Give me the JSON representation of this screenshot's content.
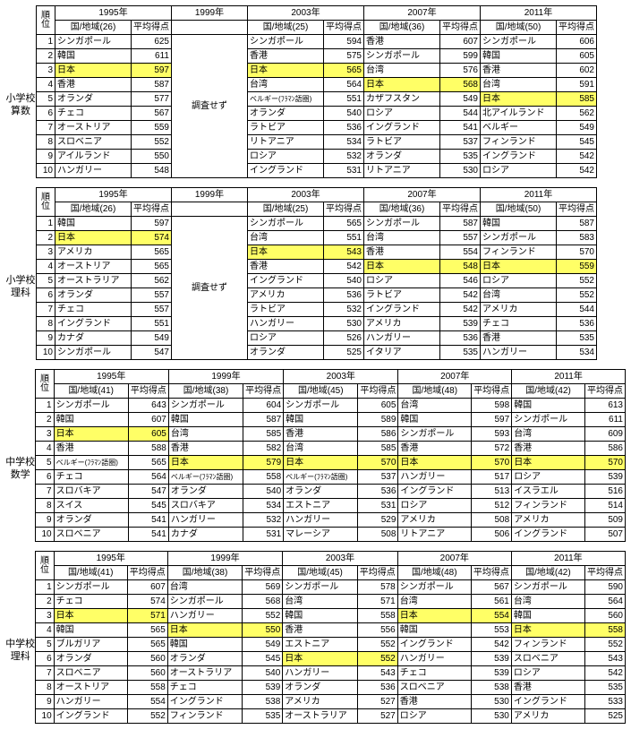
{
  "labels": {
    "rank": "順\n位",
    "year_suffix": "年",
    "avg": "平均得点",
    "noinvestigate": "調査せず"
  },
  "sections": [
    {
      "title": [
        "小学校",
        "算数"
      ],
      "years": [
        {
          "year": "1995",
          "rc": "国/地域(26)",
          "rows": [
            [
              "シンガポール",
              "625",
              0
            ],
            [
              "韓国",
              "611",
              0
            ],
            [
              "日本",
              "597",
              1
            ],
            [
              "香港",
              "587",
              0
            ],
            [
              "オランダ",
              "577",
              0
            ],
            [
              "チェコ",
              "567",
              0
            ],
            [
              "オーストリア",
              "559",
              0
            ],
            [
              "スロベニア",
              "552",
              0
            ],
            [
              "アイルランド",
              "550",
              0
            ],
            [
              "ハンガリー",
              "548",
              0
            ]
          ]
        },
        {
          "year": "1999",
          "rc": "",
          "noinvest": true
        },
        {
          "year": "2003",
          "rc": "国/地域(25)",
          "rows": [
            [
              "シンガポール",
              "594",
              0
            ],
            [
              "香港",
              "575",
              0
            ],
            [
              "日本",
              "565",
              1
            ],
            [
              "台湾",
              "564",
              0
            ],
            [
              "ベルギー(ﾌﾗﾏﾝ語圏)",
              "551",
              0
            ],
            [
              "オランダ",
              "540",
              0
            ],
            [
              "ラトビア",
              "536",
              0
            ],
            [
              "リトアニア",
              "534",
              0
            ],
            [
              "ロシア",
              "532",
              0
            ],
            [
              "イングランド",
              "531",
              0
            ]
          ]
        },
        {
          "year": "2007",
          "rc": "国/地域(36)",
          "rows": [
            [
              "香港",
              "607",
              0
            ],
            [
              "シンガポール",
              "599",
              0
            ],
            [
              "台湾",
              "576",
              0
            ],
            [
              "日本",
              "568",
              1
            ],
            [
              "カザフスタン",
              "549",
              0
            ],
            [
              "ロシア",
              "544",
              0
            ],
            [
              "イングランド",
              "541",
              0
            ],
            [
              "ラトビア",
              "537",
              0
            ],
            [
              "オランダ",
              "535",
              0
            ],
            [
              "リトアニア",
              "530",
              0
            ]
          ]
        },
        {
          "year": "2011",
          "rc": "国/地域(50)",
          "rows": [
            [
              "シンガポール",
              "606",
              0
            ],
            [
              "韓国",
              "605",
              0
            ],
            [
              "香港",
              "602",
              0
            ],
            [
              "台湾",
              "591",
              0
            ],
            [
              "日本",
              "585",
              1
            ],
            [
              "北アイルランド",
              "562",
              0
            ],
            [
              "ベルギー",
              "549",
              0
            ],
            [
              "フィンランド",
              "545",
              0
            ],
            [
              "イングランド",
              "542",
              0
            ],
            [
              "ロシア",
              "542",
              0
            ]
          ]
        }
      ]
    },
    {
      "title": [
        "小学校",
        "理科"
      ],
      "years": [
        {
          "year": "1995",
          "rc": "国/地域(26)",
          "rows": [
            [
              "韓国",
              "597",
              0
            ],
            [
              "日本",
              "574",
              1
            ],
            [
              "アメリカ",
              "565",
              0
            ],
            [
              "オーストリア",
              "565",
              0
            ],
            [
              "オーストラリア",
              "562",
              0
            ],
            [
              "オランダ",
              "557",
              0
            ],
            [
              "チェコ",
              "557",
              0
            ],
            [
              "イングランド",
              "551",
              0
            ],
            [
              "カナダ",
              "549",
              0
            ],
            [
              "シンガポール",
              "547",
              0
            ]
          ]
        },
        {
          "year": "1999",
          "rc": "",
          "noinvest": true
        },
        {
          "year": "2003",
          "rc": "国/地域(25)",
          "rows": [
            [
              "シンガポール",
              "565",
              0
            ],
            [
              "台湾",
              "551",
              0
            ],
            [
              "日本",
              "543",
              1
            ],
            [
              "香港",
              "542",
              0
            ],
            [
              "イングランド",
              "540",
              0
            ],
            [
              "アメリカ",
              "536",
              0
            ],
            [
              "ラトビア",
              "532",
              0
            ],
            [
              "ハンガリー",
              "530",
              0
            ],
            [
              "ロシア",
              "526",
              0
            ],
            [
              "オランダ",
              "525",
              0
            ]
          ]
        },
        {
          "year": "2007",
          "rc": "国/地域(36)",
          "rows": [
            [
              "シンガポール",
              "587",
              0
            ],
            [
              "台湾",
              "557",
              0
            ],
            [
              "香港",
              "554",
              0
            ],
            [
              "日本",
              "548",
              1
            ],
            [
              "ロシア",
              "546",
              0
            ],
            [
              "ラトビア",
              "542",
              0
            ],
            [
              "イングランド",
              "542",
              0
            ],
            [
              "アメリカ",
              "539",
              0
            ],
            [
              "ハンガリー",
              "536",
              0
            ],
            [
              "イタリア",
              "535",
              0
            ]
          ]
        },
        {
          "year": "2011",
          "rc": "国/地域(50)",
          "rows": [
            [
              "韓国",
              "587",
              0
            ],
            [
              "シンガポール",
              "583",
              0
            ],
            [
              "フィンランド",
              "570",
              0
            ],
            [
              "日本",
              "559",
              1
            ],
            [
              "ロシア",
              "552",
              0
            ],
            [
              "台湾",
              "552",
              0
            ],
            [
              "アメリカ",
              "544",
              0
            ],
            [
              "チェコ",
              "536",
              0
            ],
            [
              "香港",
              "535",
              0
            ],
            [
              "ハンガリー",
              "534",
              0
            ]
          ]
        }
      ]
    },
    {
      "title": [
        "中学校",
        "数学"
      ],
      "years": [
        {
          "year": "1995",
          "rc": "国/地域(41)",
          "rows": [
            [
              "シンガポール",
              "643",
              0
            ],
            [
              "韓国",
              "607",
              0
            ],
            [
              "日本",
              "605",
              1
            ],
            [
              "香港",
              "588",
              0
            ],
            [
              "ベルギー(ﾌﾗﾏﾝ語圏)",
              "565",
              0
            ],
            [
              "チェコ",
              "564",
              0
            ],
            [
              "スロバキア",
              "547",
              0
            ],
            [
              "スイス",
              "545",
              0
            ],
            [
              "オランダ",
              "541",
              0
            ],
            [
              "スロベニア",
              "541",
              0
            ]
          ]
        },
        {
          "year": "1999",
          "rc": "国/地域(38)",
          "rows": [
            [
              "シンガポール",
              "604",
              0
            ],
            [
              "韓国",
              "587",
              0
            ],
            [
              "台湾",
              "585",
              0
            ],
            [
              "香港",
              "582",
              0
            ],
            [
              "日本",
              "579",
              1
            ],
            [
              "ベルギー(ﾌﾗﾏﾝ語圏)",
              "558",
              0
            ],
            [
              "オランダ",
              "540",
              0
            ],
            [
              "スロバキア",
              "534",
              0
            ],
            [
              "ハンガリー",
              "532",
              0
            ],
            [
              "カナダ",
              "531",
              0
            ]
          ]
        },
        {
          "year": "2003",
          "rc": "国/地域(45)",
          "rows": [
            [
              "シンガポール",
              "605",
              0
            ],
            [
              "韓国",
              "589",
              0
            ],
            [
              "香港",
              "586",
              0
            ],
            [
              "台湾",
              "585",
              0
            ],
            [
              "日本",
              "570",
              1
            ],
            [
              "ベルギー(ﾌﾗﾏﾝ語圏)",
              "537",
              0
            ],
            [
              "オランダ",
              "536",
              0
            ],
            [
              "エストニア",
              "531",
              0
            ],
            [
              "ハンガリー",
              "529",
              0
            ],
            [
              "マレーシア",
              "508",
              0
            ]
          ]
        },
        {
          "year": "2007",
          "rc": "国/地域(48)",
          "rows": [
            [
              "台湾",
              "598",
              0
            ],
            [
              "韓国",
              "597",
              0
            ],
            [
              "シンガポール",
              "593",
              0
            ],
            [
              "香港",
              "572",
              0
            ],
            [
              "日本",
              "570",
              1
            ],
            [
              "ハンガリー",
              "517",
              0
            ],
            [
              "イングランド",
              "513",
              0
            ],
            [
              "ロシア",
              "512",
              0
            ],
            [
              "アメリカ",
              "508",
              0
            ],
            [
              "リトアニア",
              "506",
              0
            ]
          ]
        },
        {
          "year": "2011",
          "rc": "国/地域(42)",
          "rows": [
            [
              "韓国",
              "613",
              0
            ],
            [
              "シンガポール",
              "611",
              0
            ],
            [
              "台湾",
              "609",
              0
            ],
            [
              "香港",
              "586",
              0
            ],
            [
              "日本",
              "570",
              1
            ],
            [
              "ロシア",
              "539",
              0
            ],
            [
              "イスラエル",
              "516",
              0
            ],
            [
              "フィンランド",
              "514",
              0
            ],
            [
              "アメリカ",
              "509",
              0
            ],
            [
              "イングランド",
              "507",
              0
            ]
          ]
        }
      ]
    },
    {
      "title": [
        "中学校",
        "理科"
      ],
      "years": [
        {
          "year": "1995",
          "rc": "国/地域(41)",
          "rows": [
            [
              "シンガポール",
              "607",
              0
            ],
            [
              "チェコ",
              "574",
              0
            ],
            [
              "日本",
              "571",
              1
            ],
            [
              "韓国",
              "565",
              0
            ],
            [
              "ブルガリア",
              "565",
              0
            ],
            [
              "オランダ",
              "560",
              0
            ],
            [
              "スロベニア",
              "560",
              0
            ],
            [
              "オーストリア",
              "558",
              0
            ],
            [
              "ハンガリー",
              "554",
              0
            ],
            [
              "イングランド",
              "552",
              0
            ]
          ]
        },
        {
          "year": "1999",
          "rc": "国/地域(38)",
          "rows": [
            [
              "台湾",
              "569",
              0
            ],
            [
              "シンガポール",
              "568",
              0
            ],
            [
              "ハンガリー",
              "552",
              0
            ],
            [
              "日本",
              "550",
              1
            ],
            [
              "韓国",
              "549",
              0
            ],
            [
              "オランダ",
              "545",
              0
            ],
            [
              "オーストラリア",
              "540",
              0
            ],
            [
              "チェコ",
              "539",
              0
            ],
            [
              "イングランド",
              "538",
              0
            ],
            [
              "フィンランド",
              "535",
              0
            ]
          ]
        },
        {
          "year": "2003",
          "rc": "国/地域(45)",
          "rows": [
            [
              "シンガポール",
              "578",
              0
            ],
            [
              "台湾",
              "571",
              0
            ],
            [
              "韓国",
              "558",
              0
            ],
            [
              "香港",
              "556",
              0
            ],
            [
              "エストニア",
              "552",
              0
            ],
            [
              "日本",
              "552",
              1
            ],
            [
              "ハンガリー",
              "543",
              0
            ],
            [
              "オランダ",
              "536",
              0
            ],
            [
              "アメリカ",
              "527",
              0
            ],
            [
              "オーストラリア",
              "527",
              0
            ]
          ]
        },
        {
          "year": "2007",
          "rc": "国/地域(48)",
          "rows": [
            [
              "シンガポール",
              "567",
              0
            ],
            [
              "台湾",
              "561",
              0
            ],
            [
              "日本",
              "554",
              1
            ],
            [
              "韓国",
              "553",
              0
            ],
            [
              "イングランド",
              "542",
              0
            ],
            [
              "ハンガリー",
              "539",
              0
            ],
            [
              "チェコ",
              "539",
              0
            ],
            [
              "スロベニア",
              "538",
              0
            ],
            [
              "香港",
              "530",
              0
            ],
            [
              "ロシア",
              "530",
              0
            ]
          ]
        },
        {
          "year": "2011",
          "rc": "国/地域(42)",
          "rows": [
            [
              "シンガポール",
              "590",
              0
            ],
            [
              "台湾",
              "564",
              0
            ],
            [
              "韓国",
              "560",
              0
            ],
            [
              "日本",
              "558",
              1
            ],
            [
              "フィンランド",
              "552",
              0
            ],
            [
              "スロベニア",
              "543",
              0
            ],
            [
              "ロシア",
              "542",
              0
            ],
            [
              "香港",
              "535",
              0
            ],
            [
              "イングランド",
              "533",
              0
            ],
            [
              "アメリカ",
              "525",
              0
            ]
          ]
        }
      ]
    }
  ]
}
